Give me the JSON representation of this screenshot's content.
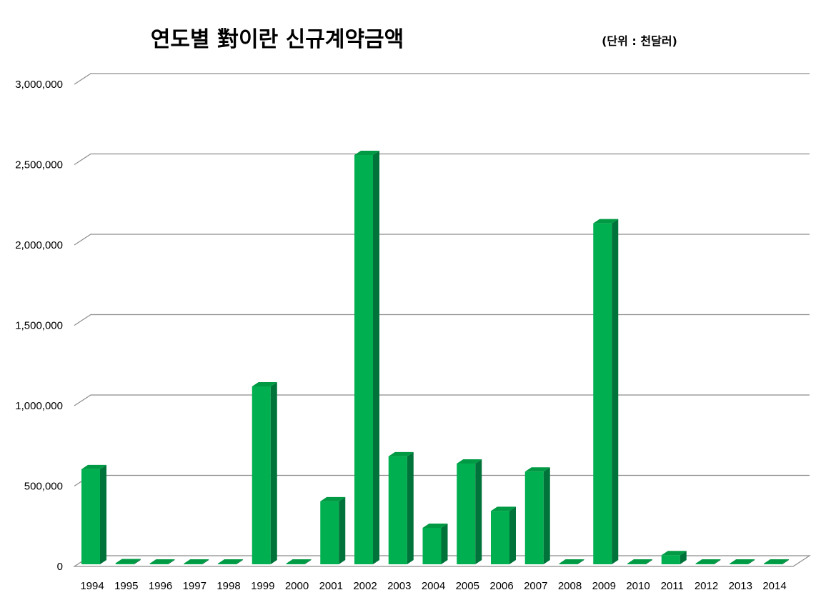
{
  "chart_data": {
    "type": "bar",
    "title": "연도별 對이란 신규계약금액",
    "unit_label": "(단위 : 천달러)",
    "categories": [
      "1994",
      "1995",
      "1996",
      "1997",
      "1998",
      "1999",
      "2000",
      "2001",
      "2002",
      "2003",
      "2004",
      "2005",
      "2006",
      "2007",
      "2008",
      "2009",
      "2010",
      "2011",
      "2012",
      "2013",
      "2014"
    ],
    "values": [
      605000,
      20000,
      1000,
      1000,
      3000,
      1120000,
      2000,
      405000,
      2560000,
      685000,
      240000,
      640000,
      345000,
      590000,
      1000,
      2135000,
      2000,
      70000,
      2000,
      2000,
      8000
    ],
    "ylim": [
      0,
      3000000
    ],
    "yticks": [
      0,
      500000,
      1000000,
      1500000,
      2000000,
      2500000,
      3000000
    ],
    "ytick_labels": [
      "0",
      "500,000",
      "1,000,000",
      "1,500,000",
      "2,000,000",
      "2,500,000",
      "3,000,000"
    ],
    "grid": true,
    "legend": "none",
    "colors": {
      "bar_front": "#00b050",
      "bar_side": "#00733a",
      "bar_top": "#009a44",
      "grid": "#8c8c8c"
    }
  }
}
